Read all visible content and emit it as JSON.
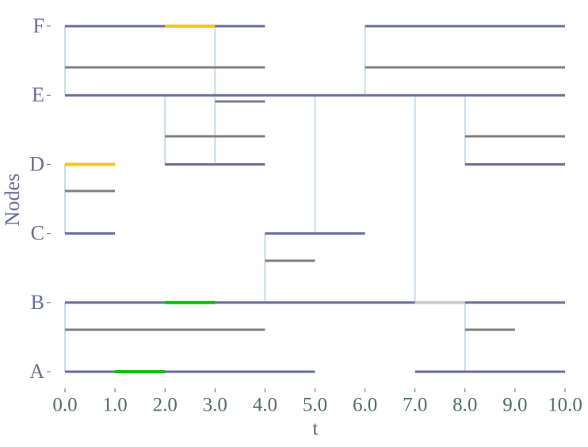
{
  "chart_data": {
    "type": "timeline",
    "xlabel": "t",
    "ylabel": "Nodes",
    "categories": [
      "A",
      "B",
      "C",
      "D",
      "E",
      "F"
    ],
    "xlim": [
      0,
      10
    ],
    "xticks": [
      {
        "value": 0,
        "label": "0.0"
      },
      {
        "value": 1,
        "label": "1.0"
      },
      {
        "value": 2,
        "label": "2.0"
      },
      {
        "value": 3,
        "label": "3.0"
      },
      {
        "value": 4,
        "label": "4.0"
      },
      {
        "value": 5,
        "label": "5.0"
      },
      {
        "value": 6,
        "label": "6.0"
      },
      {
        "value": 7,
        "label": "7.0"
      },
      {
        "value": 8,
        "label": "8.0"
      },
      {
        "value": 9,
        "label": "9.0"
      },
      {
        "value": 10,
        "label": "10.0"
      }
    ],
    "timeline_color": "#6b6d99",
    "timelines": [
      {
        "node": "F",
        "start": 0,
        "end": 4
      },
      {
        "node": "F",
        "start": 6,
        "end": 10
      },
      {
        "node": "E",
        "start": 0,
        "end": 10
      },
      {
        "node": "D",
        "start": 0,
        "end": 1
      },
      {
        "node": "D",
        "start": 2,
        "end": 4
      },
      {
        "node": "D",
        "start": 8,
        "end": 10
      },
      {
        "node": "C",
        "start": 0,
        "end": 1
      },
      {
        "node": "C",
        "start": 4,
        "end": 6
      },
      {
        "node": "B",
        "start": 0,
        "end": 10
      },
      {
        "node": "A",
        "start": 0,
        "end": 5
      },
      {
        "node": "A",
        "start": 7,
        "end": 10
      }
    ],
    "edge_color": "#808080",
    "edges": [
      {
        "start": 0,
        "end": 4
      },
      {
        "start": 6,
        "end": 10
      },
      {
        "start": 3,
        "end": 4
      },
      {
        "start": 2,
        "end": 4
      },
      {
        "start": 8,
        "end": 10
      },
      {
        "start": 0,
        "end": 1
      },
      {
        "start": 4,
        "end": 5
      },
      {
        "start": 0,
        "end": 4
      },
      {
        "start": 8,
        "end": 9
      }
    ],
    "highlights": [
      {
        "node": "F",
        "start": 2,
        "end": 3,
        "color": "#f2c811"
      },
      {
        "node": "D",
        "start": 0,
        "end": 1,
        "color": "#f2c811"
      },
      {
        "node": "B",
        "start": 2,
        "end": 3,
        "color": "#11bb11"
      },
      {
        "node": "B",
        "start": 7,
        "end": 8,
        "color": "#cccccc"
      },
      {
        "node": "A",
        "start": 1,
        "end": 2,
        "color": "#11bb11"
      }
    ],
    "link_color": "#c9dbe9",
    "links": [
      {
        "t": 0,
        "from": "E",
        "to": "F"
      },
      {
        "t": 3,
        "from": "D",
        "to": "F"
      },
      {
        "t": 6,
        "from": "E",
        "to": "F"
      },
      {
        "t": 2,
        "from": "D",
        "to": "E"
      },
      {
        "t": 5,
        "from": "C",
        "to": "E"
      },
      {
        "t": 7,
        "from": "B",
        "to": "E"
      },
      {
        "t": 8,
        "from": "D",
        "to": "E"
      },
      {
        "t": 0,
        "from": "C",
        "to": "D"
      },
      {
        "t": 4,
        "from": "B",
        "to": "C"
      },
      {
        "t": 0,
        "from": "A",
        "to": "B"
      },
      {
        "t": 8,
        "from": "A",
        "to": "B"
      }
    ]
  }
}
